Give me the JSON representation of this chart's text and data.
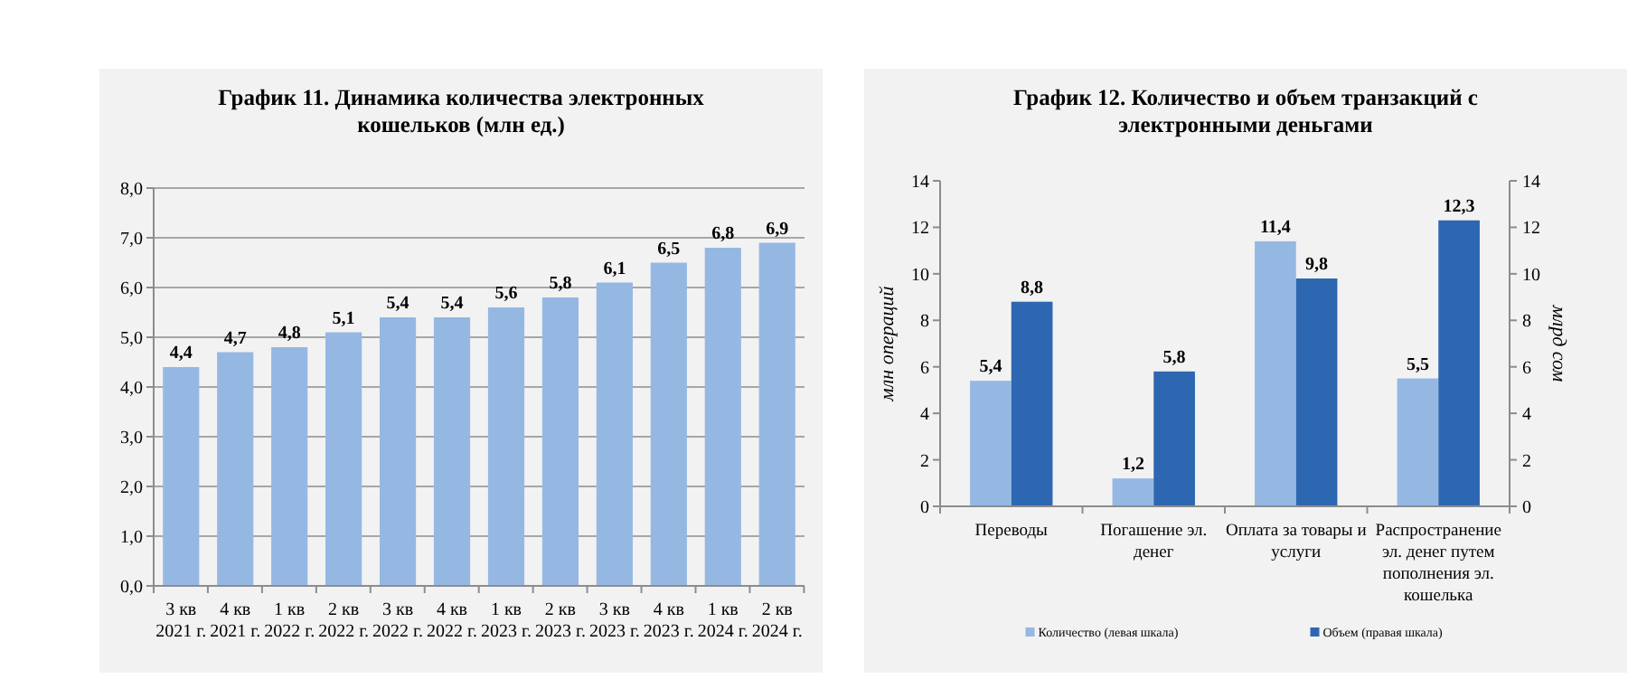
{
  "chart_data": [
    {
      "type": "bar",
      "title": "График 11. Динамика количества электронных кошельков (млн ед.)",
      "categories": [
        "3 кв 2021 г.",
        "4 кв 2021 г.",
        "1 кв 2022 г.",
        "2 кв 2022 г.",
        "3 кв 2022 г.",
        "4 кв 2022 г.",
        "1 кв 2023 г.",
        "2 кв 2023 г.",
        "3 кв 2023 г.",
        "4 кв 2023 г.",
        "1 кв 2024 г.",
        "2 кв 2024 г."
      ],
      "series": [
        {
          "color": "#95b8e3",
          "values": [
            4.4,
            4.7,
            4.8,
            5.1,
            5.4,
            5.4,
            5.6,
            5.8,
            6.1,
            6.5,
            6.8,
            6.9
          ],
          "value_labels": [
            "4,4",
            "4,7",
            "4,8",
            "5,1",
            "5,4",
            "5,4",
            "5,6",
            "5,8",
            "6,1",
            "6,5",
            "6,8",
            "6,9"
          ]
        }
      ],
      "ylim": [
        0,
        8
      ],
      "yticks": [
        {
          "value": 0,
          "label": "0,0"
        },
        {
          "value": 1,
          "label": "1,0"
        },
        {
          "value": 2,
          "label": "2,0"
        },
        {
          "value": 3,
          "label": "3,0"
        },
        {
          "value": 4,
          "label": "4,0"
        },
        {
          "value": 5,
          "label": "5,0"
        },
        {
          "value": 6,
          "label": "6,0"
        },
        {
          "value": 7,
          "label": "7,0"
        },
        {
          "value": 8,
          "label": "8,0"
        }
      ],
      "grid": "y",
      "legend": false
    },
    {
      "type": "bar",
      "title": "График 12. Количество и объем транзакций с электронными деньгами",
      "ylabel": "млн операций",
      "y2label": "млрд сом",
      "categories": [
        "Переводы",
        "Погашение эл. денег",
        "Оплата за товары и услуги",
        "Распространение эл. денег путем пополнения эл. кошелька"
      ],
      "series": [
        {
          "name": "Количество (левая шкала)",
          "color": "#95b8e3",
          "values": [
            5.4,
            1.2,
            11.4,
            5.5
          ],
          "value_labels": [
            "5,4",
            "1,2",
            "11,4",
            "5,5"
          ]
        },
        {
          "name": "Объем (правая шкала)",
          "color": "#2e67b1",
          "axis": "y2",
          "values": [
            8.8,
            5.8,
            9.8,
            12.3
          ],
          "value_labels": [
            "8,8",
            "5,8",
            "9,8",
            "12,3"
          ]
        }
      ],
      "ylim": [
        0,
        14
      ],
      "yticks": [
        0,
        2,
        4,
        6,
        8,
        10,
        12,
        14
      ],
      "y2lim": [
        0,
        14
      ],
      "y2ticks": [
        0,
        2,
        4,
        6,
        8,
        10,
        12,
        14
      ],
      "grid": false,
      "legend": "bottom"
    }
  ]
}
